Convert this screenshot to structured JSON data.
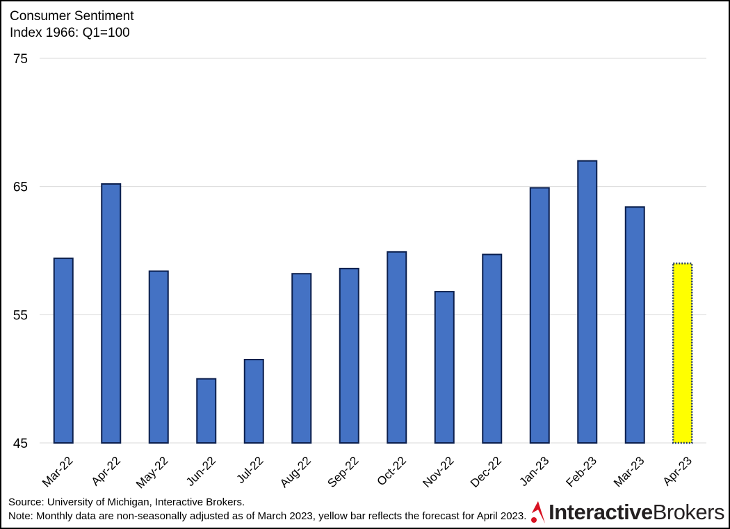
{
  "chart_data": {
    "type": "bar",
    "title": "Consumer Sentiment",
    "subtitle": "Index 1966: Q1=100",
    "categories": [
      "Mar-22",
      "Apr-22",
      "May-22",
      "Jun-22",
      "Jul-22",
      "Aug-22",
      "Sep-22",
      "Oct-22",
      "Nov-22",
      "Dec-22",
      "Jan-23",
      "Feb-23",
      "Mar-23",
      "Apr-23"
    ],
    "values": [
      59.4,
      65.2,
      58.4,
      50.0,
      51.5,
      58.2,
      58.6,
      59.9,
      56.8,
      59.7,
      64.9,
      67.0,
      63.4,
      59.0
    ],
    "forecast_index": 13,
    "ylim": [
      45,
      75
    ],
    "yticks": [
      "45",
      "55",
      "65",
      "75"
    ],
    "grid": true,
    "legend": "none",
    "xlabel": "",
    "ylabel": "",
    "colors": {
      "bar_fill": "#4472C4",
      "bar_stroke": "#0B1F4D",
      "forecast_fill": "#FFFF00",
      "forecast_stroke": "#1F3864",
      "grid": "#D9D9D9"
    }
  },
  "footer": {
    "source": "Source: University of Michigan, Interactive Brokers.",
    "note": "Note: Monthly data are non-seasonally adjusted as of March 2023, yellow bar reflects the forecast for April 2023."
  },
  "logo": {
    "part1": "Interactive",
    "part2": "Brokers",
    "icon": "interactive-brokers-logo-icon",
    "colors": {
      "mark_red": "#D81222",
      "mark_dark": "#8B0A10"
    }
  }
}
